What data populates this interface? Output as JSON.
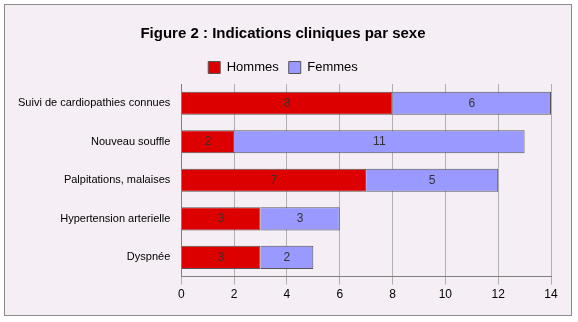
{
  "chart_data": {
    "type": "bar",
    "title": "Figure 2 : Indications cliniques par sexe",
    "orientation": "horizontal",
    "stacked": true,
    "data_labels": true,
    "legend": "top",
    "grid": true,
    "categories": [
      "Suivi de cardiopathies connues",
      "Nouveau souffle",
      "Palpitations, malaises",
      "Hypertension arterielle",
      "Dyspnée"
    ],
    "series": [
      {
        "name": "Hommes",
        "color": "#dd0000",
        "values": [
          8,
          2,
          7,
          3,
          3
        ]
      },
      {
        "name": "Femmes",
        "color": "#9999ff",
        "values": [
          6,
          11,
          5,
          3,
          2
        ]
      }
    ],
    "xlim": [
      0,
      14
    ],
    "xticks": [
      0,
      2,
      4,
      6,
      8,
      10,
      12,
      14
    ]
  }
}
